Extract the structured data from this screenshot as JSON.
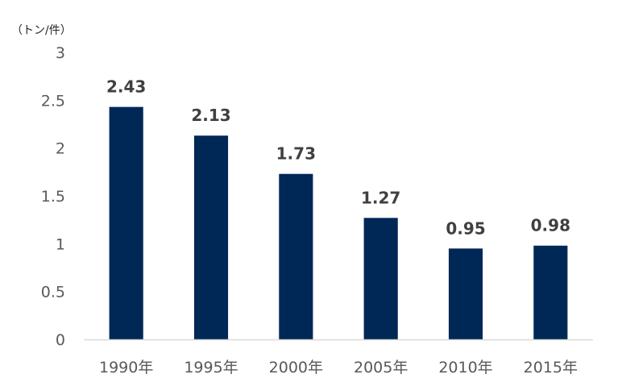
{
  "chart_data": {
    "type": "bar",
    "title": "",
    "unit_label": "（トン/件）",
    "xlabel": "",
    "ylabel": "",
    "categories": [
      "1990年",
      "1995年",
      "2000年",
      "2005年",
      "2010年",
      "2015年"
    ],
    "values": [
      2.43,
      2.13,
      1.73,
      1.27,
      0.95,
      0.98
    ],
    "data_labels": [
      "2.43",
      "2.13",
      "1.73",
      "1.27",
      "0.95",
      "0.98"
    ],
    "ylim": [
      0,
      3
    ],
    "yticks": [
      0,
      0.5,
      1,
      1.5,
      2,
      2.5,
      3
    ],
    "ytick_labels": [
      "0",
      "0.5",
      "1",
      "1.5",
      "2",
      "2.5",
      "3"
    ],
    "grid": false,
    "legend": "none",
    "bar_color": "#002856",
    "axis_color": "#d9d9d9"
  }
}
